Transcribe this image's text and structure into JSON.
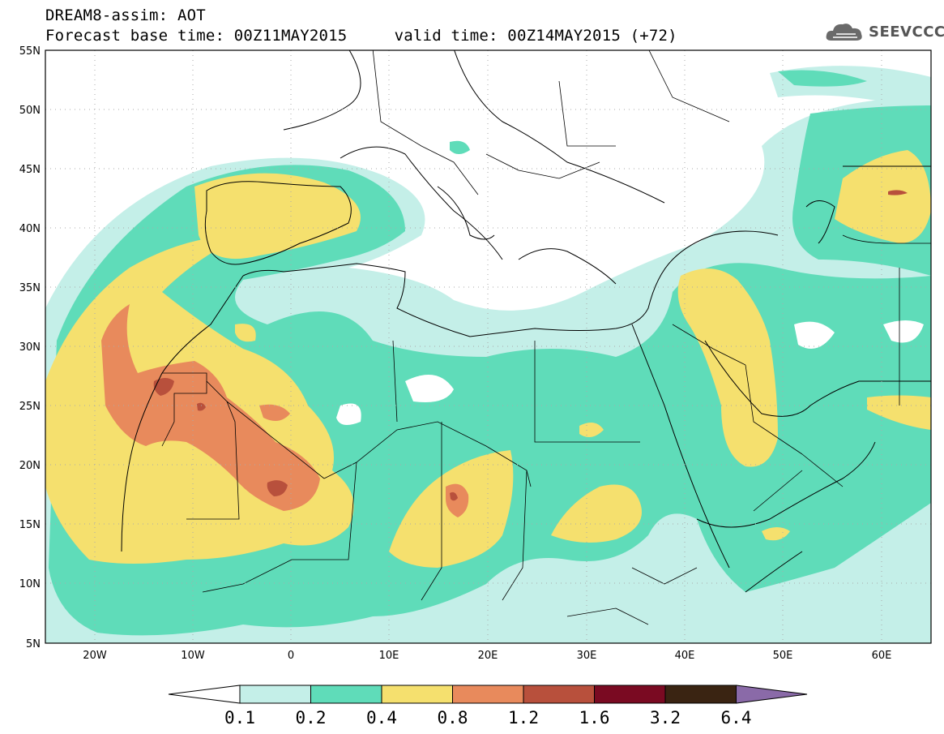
{
  "title": {
    "line1": "DREAM8-assim: AOT",
    "line2": "Forecast base time: 00Z11MAY2015     valid time: 00Z14MAY2015 (+72)"
  },
  "logo": {
    "text": "SEEVCCC",
    "icon": "cloud-logo-icon"
  },
  "map": {
    "lat_labels": [
      "55N",
      "50N",
      "45N",
      "40N",
      "35N",
      "30N",
      "25N",
      "20N",
      "15N",
      "10N",
      "5N"
    ],
    "lon_labels": [
      "20W",
      "10W",
      "0",
      "10E",
      "20E",
      "30E",
      "40E",
      "50E",
      "60E"
    ],
    "lon_range": [
      -25,
      65
    ],
    "lat_range": [
      5,
      55
    ]
  },
  "colorbar": {
    "labels": [
      "0.1",
      "0.2",
      "0.4",
      "0.8",
      "1.2",
      "1.6",
      "3.2",
      "6.4"
    ],
    "colors": [
      "#ffffff",
      "#c4efe8",
      "#5fdcb9",
      "#f5e06e",
      "#e88a5c",
      "#b8503c",
      "#7a0a22",
      "#3a2412",
      "#8a6aa8"
    ]
  }
}
